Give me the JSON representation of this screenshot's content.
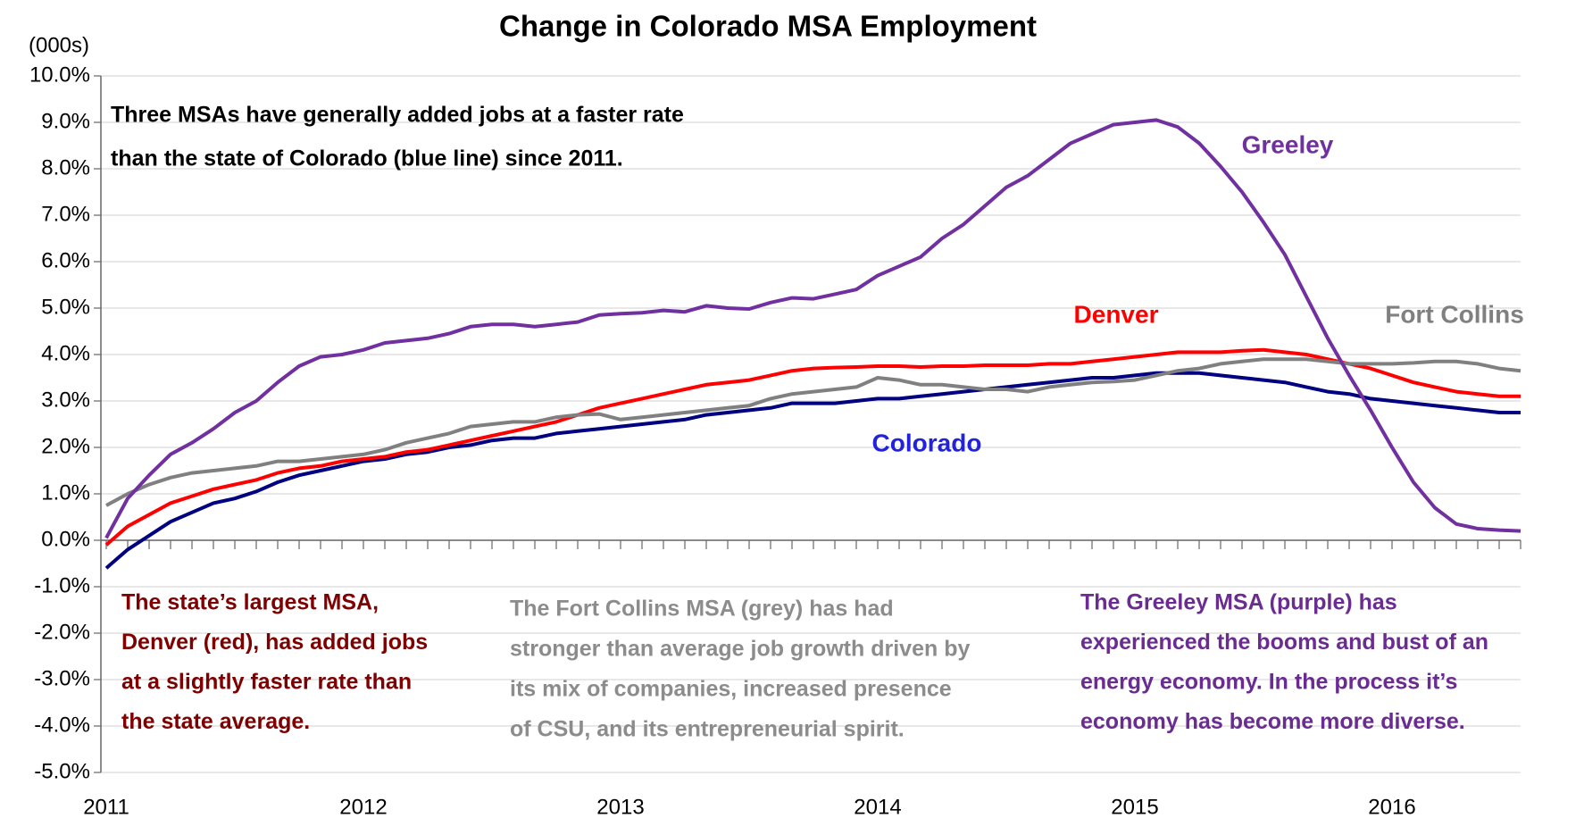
{
  "chart_data": {
    "type": "line",
    "title": "Change in Colorado MSA Employment",
    "y_label": "(000s)",
    "categories": [
      "2011",
      null,
      null,
      null,
      null,
      null,
      null,
      null,
      null,
      null,
      null,
      null,
      "2012",
      null,
      null,
      null,
      null,
      null,
      null,
      null,
      null,
      null,
      null,
      null,
      "2013",
      null,
      null,
      null,
      null,
      null,
      null,
      null,
      null,
      null,
      null,
      null,
      "2014",
      null,
      null,
      null,
      null,
      null,
      null,
      null,
      null,
      null,
      null,
      null,
      "2015",
      null,
      null,
      null,
      null,
      null,
      null,
      null,
      null,
      null,
      null,
      null,
      "2016",
      null,
      null,
      null,
      null,
      null,
      null
    ],
    "series": [
      {
        "name": "Colorado",
        "color": "#000080",
        "label_color": "#2222dd",
        "values": [
          -0.6,
          -0.2,
          0.1,
          0.4,
          0.6,
          0.8,
          0.9,
          1.05,
          1.25,
          1.4,
          1.5,
          1.6,
          1.7,
          1.75,
          1.85,
          1.9,
          2.0,
          2.05,
          2.15,
          2.2,
          2.2,
          2.3,
          2.35,
          2.4,
          2.45,
          2.5,
          2.55,
          2.6,
          2.7,
          2.75,
          2.8,
          2.85,
          2.95,
          2.95,
          2.95,
          3.0,
          3.05,
          3.05,
          3.1,
          3.15,
          3.2,
          3.25,
          3.3,
          3.35,
          3.4,
          3.45,
          3.5,
          3.5,
          3.55,
          3.6,
          3.6,
          3.6,
          3.55,
          3.5,
          3.45,
          3.4,
          3.3,
          3.2,
          3.15,
          3.05,
          3.0,
          2.95,
          2.9,
          2.85,
          2.8,
          2.75,
          2.75
        ]
      },
      {
        "name": "Denver",
        "color": "#ff0000",
        "label_color": "#ff0000",
        "values": [
          -0.1,
          0.3,
          0.55,
          0.8,
          0.95,
          1.1,
          1.2,
          1.3,
          1.45,
          1.55,
          1.6,
          1.7,
          1.75,
          1.8,
          1.9,
          1.95,
          2.05,
          2.15,
          2.25,
          2.35,
          2.45,
          2.55,
          2.7,
          2.85,
          2.95,
          3.05,
          3.15,
          3.25,
          3.35,
          3.4,
          3.45,
          3.55,
          3.65,
          3.7,
          3.72,
          3.73,
          3.75,
          3.75,
          3.73,
          3.75,
          3.75,
          3.77,
          3.77,
          3.77,
          3.8,
          3.8,
          3.85,
          3.9,
          3.95,
          4.0,
          4.05,
          4.05,
          4.05,
          4.08,
          4.1,
          4.05,
          4.0,
          3.9,
          3.8,
          3.7,
          3.55,
          3.4,
          3.3,
          3.2,
          3.15,
          3.1,
          3.1
        ]
      },
      {
        "name": "Fort Collins",
        "color": "#808080",
        "label_color": "#808080",
        "values": [
          0.75,
          1.0,
          1.2,
          1.35,
          1.45,
          1.5,
          1.55,
          1.6,
          1.7,
          1.7,
          1.75,
          1.8,
          1.85,
          1.95,
          2.1,
          2.2,
          2.3,
          2.45,
          2.5,
          2.55,
          2.55,
          2.65,
          2.7,
          2.72,
          2.6,
          2.65,
          2.7,
          2.75,
          2.8,
          2.85,
          2.9,
          3.05,
          3.15,
          3.2,
          3.25,
          3.3,
          3.5,
          3.45,
          3.35,
          3.35,
          3.3,
          3.25,
          3.25,
          3.2,
          3.3,
          3.35,
          3.4,
          3.42,
          3.45,
          3.55,
          3.65,
          3.7,
          3.8,
          3.85,
          3.9,
          3.9,
          3.9,
          3.85,
          3.8,
          3.8,
          3.8,
          3.82,
          3.85,
          3.85,
          3.8,
          3.7,
          3.65
        ]
      },
      {
        "name": "Greeley",
        "color": "#7030a0",
        "label_color": "#7030a0",
        "values": [
          0.05,
          0.9,
          1.4,
          1.85,
          2.1,
          2.4,
          2.75,
          3.0,
          3.4,
          3.75,
          3.95,
          4.0,
          4.1,
          4.25,
          4.3,
          4.35,
          4.45,
          4.6,
          4.65,
          4.65,
          4.6,
          4.65,
          4.7,
          4.85,
          4.88,
          4.9,
          4.95,
          4.92,
          5.05,
          5.0,
          4.98,
          5.12,
          5.22,
          5.2,
          5.3,
          5.4,
          5.7,
          5.9,
          6.1,
          6.5,
          6.8,
          7.2,
          7.6,
          7.85,
          8.2,
          8.55,
          8.75,
          8.95,
          9.0,
          9.05,
          8.9,
          8.55,
          8.05,
          7.5,
          6.85,
          6.15,
          5.25,
          4.35,
          3.55,
          2.8,
          2.0,
          1.25,
          0.7,
          0.35,
          0.25,
          0.22,
          0.2
        ]
      }
    ],
    "ylim": [
      -5,
      10
    ],
    "yticks": [
      {
        "value": -5,
        "label": "-5.0%"
      },
      {
        "value": -4,
        "label": "-4.0%"
      },
      {
        "value": -3,
        "label": "-3.0%"
      },
      {
        "value": -2,
        "label": "-2.0%"
      },
      {
        "value": -1,
        "label": "-1.0%"
      },
      {
        "value": 0,
        "label": "0.0%"
      },
      {
        "value": 1,
        "label": "1.0%"
      },
      {
        "value": 2,
        "label": "2.0%"
      },
      {
        "value": 3,
        "label": "3.0%"
      },
      {
        "value": 4,
        "label": "4.0%"
      },
      {
        "value": 5,
        "label": "5.0%"
      },
      {
        "value": 6,
        "label": "6.0%"
      },
      {
        "value": 7,
        "label": "7.0%"
      },
      {
        "value": 8,
        "label": "8.0%"
      },
      {
        "value": 9,
        "label": "9.0%"
      },
      {
        "value": 10,
        "label": "10.0%"
      }
    ],
    "grid": true,
    "annotations": [
      {
        "lines": [
          "Three MSAs have generally added jobs at a faster rate",
          "than the state of Colorado (blue line) since 2011."
        ],
        "color": "#000000"
      },
      {
        "lines": [
          "The state’s largest MSA,",
          "Denver (red), has added jobs",
          "at a slightly faster rate than",
          "the state average."
        ],
        "color": "#7f0000"
      },
      {
        "lines": [
          "The Fort Collins MSA (grey) has had",
          "stronger than average job growth driven by",
          "its mix of companies, increased presence",
          "of CSU, and its entrepreneurial spirit."
        ],
        "color": "#8c8c8c"
      },
      {
        "lines": [
          "The Greeley MSA (purple) has",
          "experienced the booms and bust of an",
          "energy economy. In the process it’s",
          "economy has become more diverse."
        ],
        "color": "#6a2c91"
      }
    ]
  }
}
